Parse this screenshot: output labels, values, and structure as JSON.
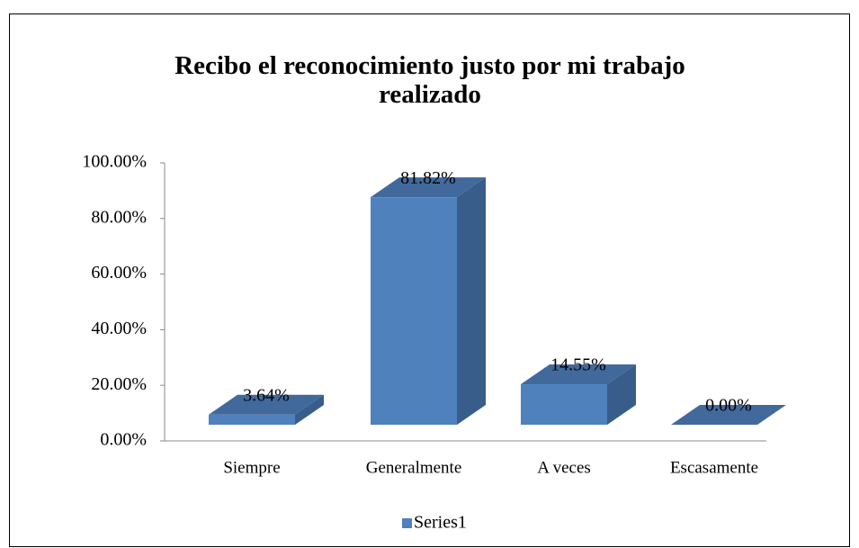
{
  "chart_data": {
    "type": "bar3d",
    "title": "Recibo el reconocimiento justo por mi trabajo realizado",
    "categories": [
      "Siempre",
      "Generalmente",
      "A veces",
      "Escasamente"
    ],
    "series": [
      {
        "name": "Series1",
        "color": "#4f81bd",
        "values": [
          3.64,
          81.82,
          14.55,
          0
        ],
        "value_labels": [
          "3.64%",
          "81.82%",
          "14.55%",
          "0.00%"
        ]
      }
    ],
    "ylim": [
      0,
      100
    ],
    "yticks": [
      {
        "value": 0,
        "label": "0.00%"
      },
      {
        "value": 20,
        "label": "20.00%"
      },
      {
        "value": 40,
        "label": "40.00%"
      },
      {
        "value": 60,
        "label": "60.00%"
      },
      {
        "value": 80,
        "label": "80.00%"
      },
      {
        "value": 100,
        "label": "100.00%"
      }
    ],
    "legend": "bottom"
  }
}
